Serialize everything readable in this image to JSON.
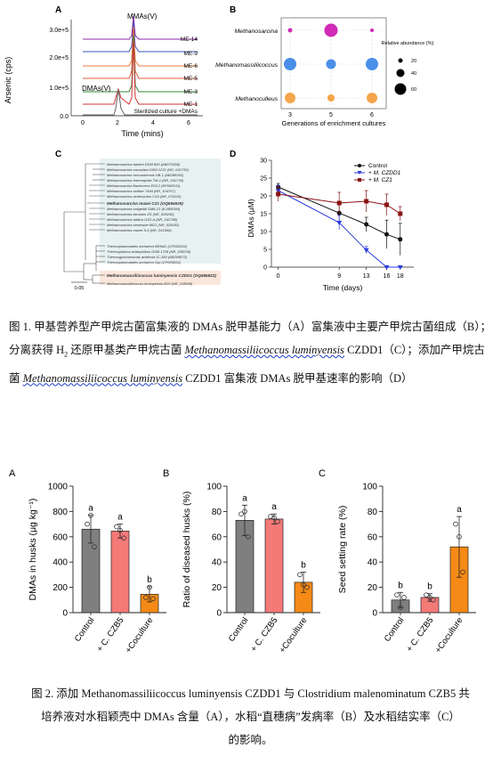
{
  "figure1": {
    "panelA": {
      "letter": "A",
      "ylabel": "Arsenic (cps)",
      "xlabel": "Time (mins)",
      "yticks": [
        "0.0",
        "1.0e+5",
        "2.0e+5",
        "3.0e+5"
      ],
      "xticks": [
        "0",
        "2",
        "4",
        "6"
      ],
      "traces": [
        "ME-14",
        "ME-9",
        "ME-6",
        "ME-5",
        "ME-3",
        "ME-1"
      ],
      "trace_colors": [
        "#8d2aa8",
        "#3a55b9",
        "#f07a37",
        "#e2583a",
        "#2e8b3a",
        "#d13434"
      ],
      "bottom_trace": "Sterilized culture +DMAs",
      "peak_mma": "MMAs(V)",
      "peak_dma": "DMAs(V)"
    },
    "panelB": {
      "letter": "B",
      "rows": [
        "Methanosarcina",
        "Methanomassiliicoccus",
        "Methanoculleus"
      ],
      "columns": [
        "3",
        "5",
        "6"
      ],
      "xlabel": "Generations of enrichment cultures",
      "legend_title": "Relative abundance (%)",
      "legend_values": [
        "20",
        "40",
        "60"
      ],
      "colors": [
        "#d12ab7",
        "#4a8fe8",
        "#f5a54a"
      ]
    },
    "panelC": {
      "letter": "C",
      "scale_label": "0.05",
      "taxa": [
        "Methanosarcina barkeri DSM 800 (AB973358)",
        "Methanosarcina vacuolata DSM 1232 (NR_041730)",
        "Methanosarcina horonobensis HB-1 (AB288262)",
        "Methanosarcina thermophila TM-1 (NR_041735)",
        "Methanosarcina flavescens E03.2 (KP058101)",
        "Methanosarcina siciliae T4/M (NR_104757)",
        "Methanosarcina acetivorans C2A (NR_074110)",
        "Methanosarcina mazei CZ1 (OQ594539)",
        "Methanosarcina soligelidi SMA-21 (KJ489394)",
        "Methanosarcina lacustris ZS (NR_028240)",
        "Methanosarcina baltica GS1-A (NR_042785)",
        "Methanosarcina semesiae MD1 (NR_028182)",
        "Methanosarcina mazei S-6 (NR_041956)",
        "Thermoplasmatales archaeon BRNA1 (CP002916)",
        "Thermoplasma acidophilum DSM 1728 (NR_028235)",
        "Thermogymnomonas acidicola IC-189 (AB269873)",
        "Thermoplasmatales archaeon Gpl (CP005934)",
        "Methanomassiliicoccus luminyensis CZDD1 (OQ586822)",
        "Methanomassiliicoccus luminyensis B10 (NR_118098)"
      ]
    },
    "panelD": {
      "letter": "D",
      "ylabel": "DMAs (μM)",
      "xlabel": "Time (days)",
      "legend": [
        "Control",
        "+ M. CZDD1",
        "+ M. CZ1"
      ],
      "colors": [
        "#111111",
        "#2b3be0",
        "#8a1313"
      ]
    },
    "caption": {
      "prefix": "图 1. 甲基营养型产甲烷古菌富集液的 DMAs 脱甲基能力（A）富集液中主要产甲烷古菌组成（B）；分离获得 ",
      "h2": "H",
      "h2_sub": "2",
      "mid1": " 还原甲基类产甲烷古菌 ",
      "species": "Methanomassiliicoccus luminyensis",
      "strain": " CZDD1（C）；添加产甲烷古菌 ",
      "species2": "Methanomassiliicoccus luminyensis",
      "suffix": " CZDD1 富集液 DMAs 脱甲基速率的影响（D）"
    }
  },
  "figure2": {
    "panelA": {
      "letter": "A",
      "ylabel": "DMAs in husks (μg kg⁻¹)",
      "yticks": [
        "0",
        "200",
        "400",
        "600",
        "800",
        "1000"
      ],
      "letters": [
        "a",
        "a",
        "b"
      ]
    },
    "panelB": {
      "letter": "B",
      "ylabel": "Ratio of diseased husks (%)",
      "yticks": [
        "0",
        "20",
        "40",
        "60",
        "80",
        "100"
      ],
      "letters": [
        "a",
        "a",
        "b"
      ]
    },
    "panelC": {
      "letter": "C",
      "ylabel": "Seed setting rate (%)",
      "yticks": [
        "0",
        "20",
        "40",
        "60",
        "80",
        "100"
      ],
      "letters": [
        "b",
        "b",
        "a"
      ]
    },
    "categories": [
      "Control",
      "+ C. CZB5",
      "+Coculture"
    ],
    "bar_colors": [
      "#7f7f7f",
      "#f47a78",
      "#f58a16"
    ],
    "caption": {
      "line1": "图 2. 添加 Methanomassiliicoccus luminyensis CZDD1 与 Clostridium malenominatum CZB5 共",
      "line2": "培养液对水稻颖壳中 DMAs 含量（A），水稻“直穗病”发病率（B）及水稻结实率（C）",
      "line3": "的影响。"
    }
  },
  "chart_data": [
    {
      "type": "scatter",
      "title": "",
      "xlabel": "Generations of enrichment cultures",
      "ylabel": "",
      "x": [
        "3",
        "5",
        "6"
      ],
      "series": [
        {
          "name": "Methanosarcina",
          "values": [
            10,
            65,
            8
          ]
        },
        {
          "name": "Methanomassiliicoccus",
          "values": [
            55,
            35,
            55
          ]
        },
        {
          "name": "Methanoculleus",
          "values": [
            40,
            25,
            40
          ]
        }
      ]
    },
    {
      "type": "line",
      "title": "",
      "xlabel": "Time (days)",
      "ylabel": "DMAs (μM)",
      "x": [
        0,
        9,
        13,
        16,
        18
      ],
      "ylim": [
        0,
        30
      ],
      "series": [
        {
          "name": "Control",
          "values": [
            22.5,
            15.2,
            12.0,
            9.2,
            7.8
          ],
          "errors": [
            1,
            2.5,
            2,
            4,
            4.5
          ]
        },
        {
          "name": "+ M. CZDD1",
          "values": [
            21.5,
            12.5,
            4.8,
            0,
            0
          ],
          "errors": [
            1.5,
            2,
            1,
            0,
            0
          ]
        },
        {
          "name": "+ M. CZ1",
          "values": [
            20.5,
            18.0,
            18.5,
            17.5,
            15.0
          ],
          "errors": [
            2,
            3,
            3,
            3,
            2
          ]
        }
      ]
    },
    {
      "type": "bar",
      "title": "",
      "xlabel": "",
      "ylabel": "DMAs in husks (μg kg⁻¹)",
      "categories": [
        "Control",
        "+ C. CZB5",
        "+Coculture"
      ],
      "values": [
        660,
        645,
        145
      ],
      "errors": [
        110,
        55,
        60
      ],
      "points": [
        [
          700,
          770,
          520
        ],
        [
          680,
          650,
          590
        ],
        [
          120,
          200,
          110
        ]
      ],
      "ylim": [
        0,
        1000
      ]
    },
    {
      "type": "bar",
      "title": "",
      "xlabel": "",
      "ylabel": "Ratio of diseased husks (%)",
      "categories": [
        "Control",
        "+ C. CZB5",
        "+Coculture"
      ],
      "values": [
        73,
        74,
        24
      ],
      "errors": [
        12,
        4,
        8
      ],
      "points": [
        [
          78,
          80,
          60
        ],
        [
          76,
          75,
          72
        ],
        [
          30,
          22,
          20
        ]
      ],
      "ylim": [
        0,
        100
      ]
    },
    {
      "type": "bar",
      "title": "",
      "xlabel": "",
      "ylabel": "Seed setting rate (%)",
      "categories": [
        "Control",
        "+ C. CZB5",
        "+Coculture"
      ],
      "values": [
        10,
        12,
        52
      ],
      "errors": [
        6,
        3,
        24
      ],
      "points": [
        [
          14,
          4,
          12
        ],
        [
          14,
          12,
          10
        ],
        [
          70,
          60,
          32
        ]
      ],
      "ylim": [
        0,
        100
      ]
    }
  ]
}
